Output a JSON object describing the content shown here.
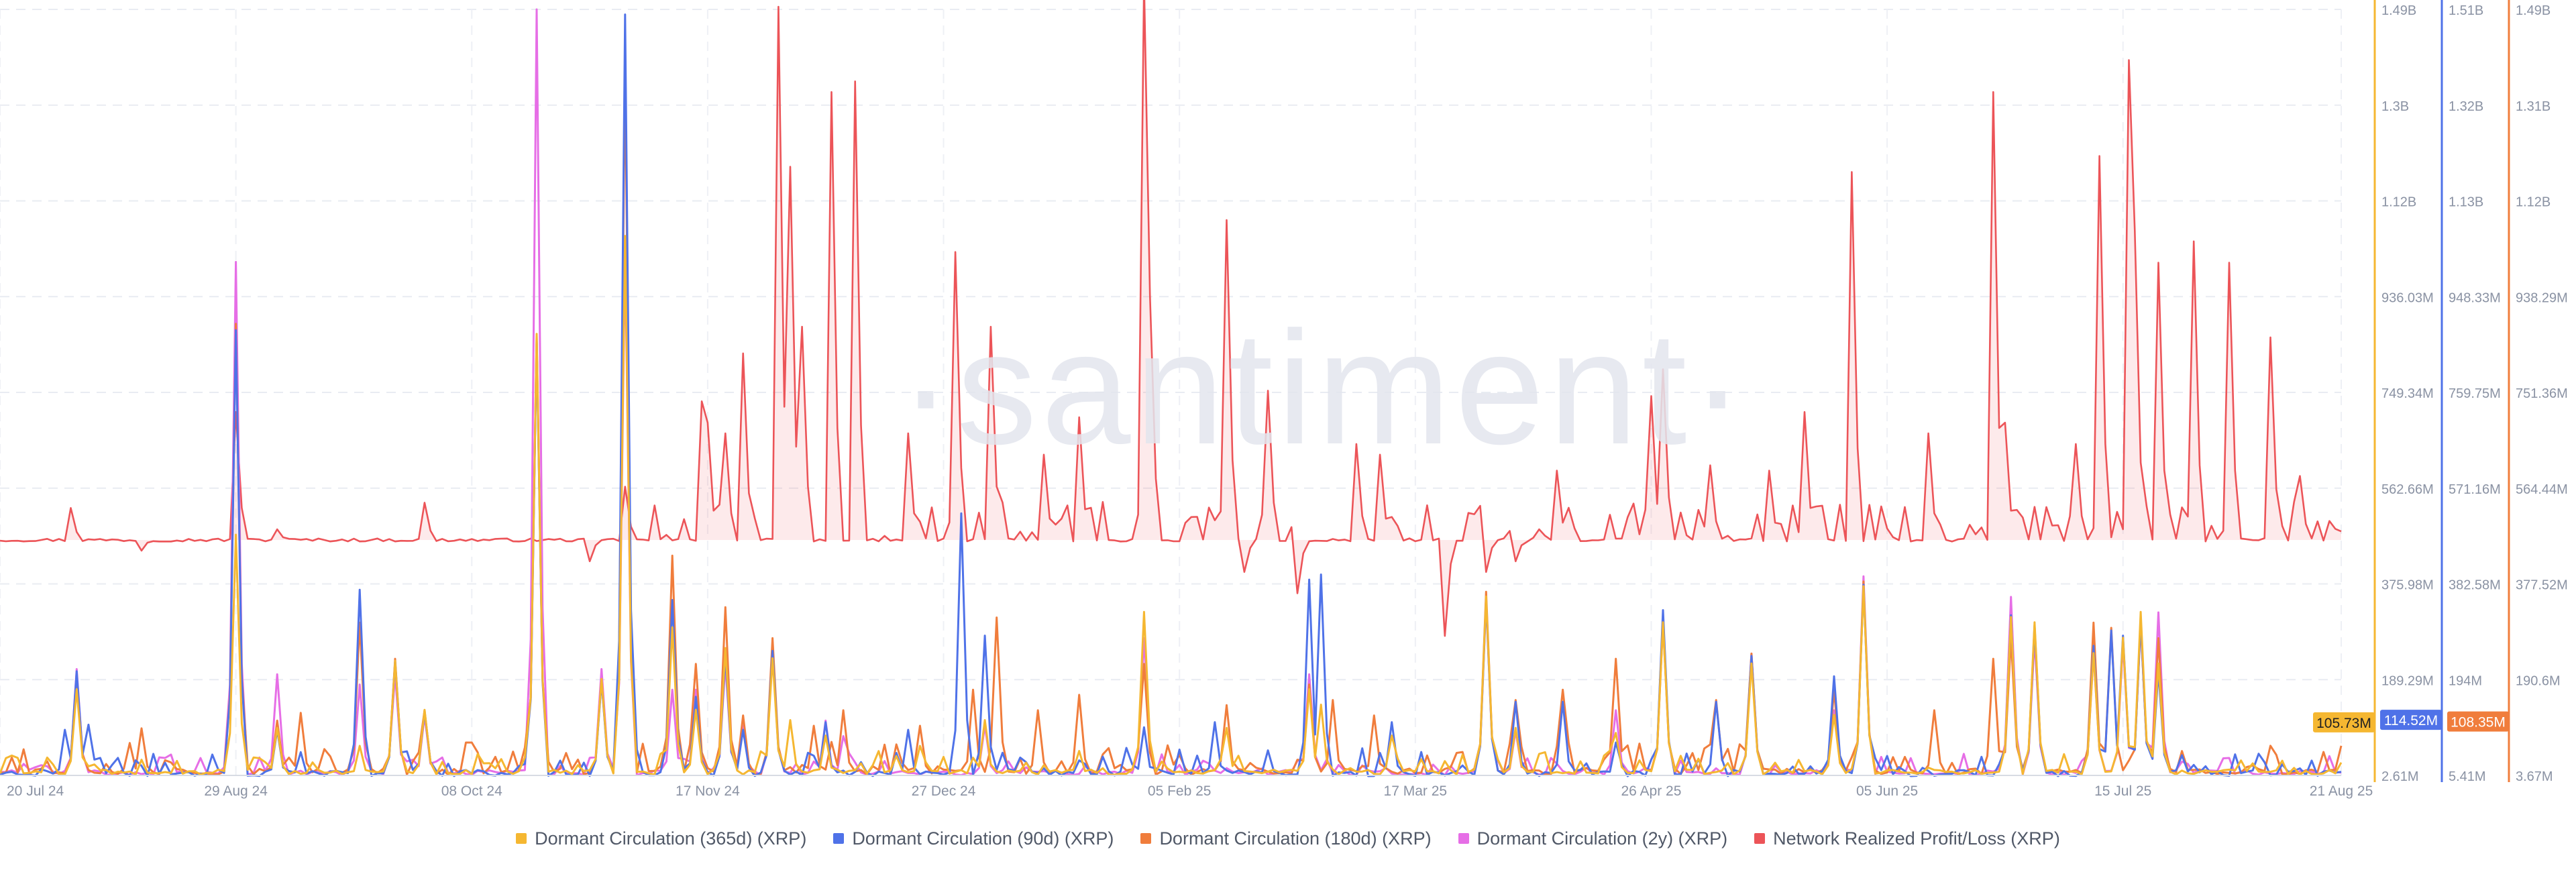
{
  "watermark": "·santiment·",
  "colors": {
    "dc365": "#f5b731",
    "dc90": "#4f72e8",
    "dc180": "#f07d3c",
    "dc2y": "#e66ee6",
    "nrpl": "#ec5458"
  },
  "chart_data": {
    "type": "line",
    "x_tick_labels": [
      "20 Jul 24",
      "29 Aug 24",
      "08 Oct 24",
      "17 Nov 24",
      "27 Dec 24",
      "05 Feb 25",
      "17 Mar 25",
      "26 Apr 25",
      "05 Jun 25",
      "15 Jul 25",
      "21 Aug 25"
    ],
    "x_tick_days": [
      0,
      40,
      80,
      120,
      160,
      200,
      240,
      280,
      320,
      360,
      397
    ],
    "grid": true,
    "y_axes": [
      {
        "series": "dc365",
        "ticks": [
          "1.49B",
          "1.3B",
          "1.12B",
          "936.03M",
          "749.34M",
          "562.66M",
          "375.98M",
          "189.29M",
          "2.61M"
        ],
        "min": 2.61,
        "max": 1490,
        "unit": "M",
        "last_value": "105.73M"
      },
      {
        "series": "dc90",
        "ticks": [
          "1.51B",
          "1.32B",
          "1.13B",
          "948.33M",
          "759.75M",
          "571.16M",
          "382.58M",
          "194M",
          "5.41M"
        ],
        "min": 5.41,
        "max": 1510,
        "unit": "M",
        "last_value": "114.52M"
      },
      {
        "series": "dc180",
        "ticks": [
          "1.49B",
          "1.31B",
          "1.12B",
          "938.29M",
          "751.36M",
          "564.44M",
          "377.52M",
          "190.6M",
          "3.67M"
        ],
        "min": 3.67,
        "max": 1490,
        "unit": "M",
        "last_value": "108.35M"
      }
    ],
    "nrpl_baseline": 0,
    "series": [
      {
        "key": "dc365",
        "name": "Dormant Circulation (365d) (XRP)",
        "spikes": [
          [
            13,
            170
          ],
          [
            40,
            470
          ],
          [
            47,
            95
          ],
          [
            61,
            60
          ],
          [
            67,
            225
          ],
          [
            72,
            130
          ],
          [
            91,
            860
          ],
          [
            102,
            190
          ],
          [
            106,
            1050
          ],
          [
            114,
            290
          ],
          [
            118,
            130
          ],
          [
            123,
            250
          ],
          [
            131,
            230
          ],
          [
            134,
            110
          ],
          [
            140,
            80
          ],
          [
            156,
            60
          ],
          [
            167,
            110
          ],
          [
            183,
            50
          ],
          [
            194,
            320
          ],
          [
            208,
            95
          ],
          [
            222,
            170
          ],
          [
            224,
            140
          ],
          [
            236,
            80
          ],
          [
            252,
            350
          ],
          [
            257,
            95
          ],
          [
            274,
            85
          ],
          [
            282,
            300
          ],
          [
            297,
            220
          ],
          [
            311,
            120
          ],
          [
            316,
            370
          ],
          [
            341,
            310
          ],
          [
            345,
            300
          ],
          [
            355,
            240
          ],
          [
            360,
            270
          ],
          [
            363,
            320
          ],
          [
            366,
            220
          ]
        ]
      },
      {
        "key": "dc90",
        "name": "Dormant Circulation (90d) (XRP)",
        "spikes": [
          [
            11,
            95
          ],
          [
            13,
            210
          ],
          [
            15,
            105
          ],
          [
            40,
            880
          ],
          [
            47,
            95
          ],
          [
            61,
            370
          ],
          [
            67,
            230
          ],
          [
            72,
            130
          ],
          [
            91,
            860
          ],
          [
            102,
            190
          ],
          [
            106,
            1500
          ],
          [
            114,
            350
          ],
          [
            118,
            160
          ],
          [
            123,
            240
          ],
          [
            126,
            95
          ],
          [
            131,
            250
          ],
          [
            140,
            110
          ],
          [
            154,
            95
          ],
          [
            163,
            520
          ],
          [
            167,
            280
          ],
          [
            194,
            100
          ],
          [
            206,
            110
          ],
          [
            222,
            390
          ],
          [
            224,
            400
          ],
          [
            236,
            110
          ],
          [
            252,
            350
          ],
          [
            257,
            150
          ],
          [
            265,
            150
          ],
          [
            274,
            70
          ],
          [
            282,
            330
          ],
          [
            291,
            150
          ],
          [
            297,
            240
          ],
          [
            311,
            200
          ],
          [
            316,
            380
          ],
          [
            341,
            320
          ],
          [
            345,
            300
          ],
          [
            355,
            260
          ],
          [
            358,
            290
          ],
          [
            360,
            280
          ],
          [
            363,
            310
          ],
          [
            366,
            210
          ]
        ]
      },
      {
        "key": "dc180",
        "name": "Dormant Circulation (180d) (XRP)",
        "spikes": [
          [
            13,
            200
          ],
          [
            24,
            95
          ],
          [
            40,
            880
          ],
          [
            47,
            110
          ],
          [
            51,
            125
          ],
          [
            61,
            300
          ],
          [
            67,
            230
          ],
          [
            72,
            130
          ],
          [
            91,
            860
          ],
          [
            102,
            190
          ],
          [
            106,
            1380
          ],
          [
            114,
            430
          ],
          [
            118,
            220
          ],
          [
            123,
            330
          ],
          [
            126,
            120
          ],
          [
            131,
            270
          ],
          [
            138,
            100
          ],
          [
            143,
            130
          ],
          [
            156,
            100
          ],
          [
            165,
            170
          ],
          [
            169,
            310
          ],
          [
            176,
            130
          ],
          [
            183,
            160
          ],
          [
            194,
            220
          ],
          [
            208,
            140
          ],
          [
            222,
            180
          ],
          [
            226,
            150
          ],
          [
            233,
            120
          ],
          [
            252,
            360
          ],
          [
            257,
            150
          ],
          [
            265,
            170
          ],
          [
            274,
            230
          ],
          [
            282,
            300
          ],
          [
            291,
            150
          ],
          [
            297,
            240
          ],
          [
            311,
            170
          ],
          [
            316,
            380
          ],
          [
            328,
            130
          ],
          [
            338,
            230
          ],
          [
            341,
            270
          ],
          [
            345,
            290
          ],
          [
            355,
            300
          ],
          [
            358,
            290
          ],
          [
            363,
            300
          ],
          [
            366,
            270
          ]
        ]
      },
      {
        "key": "dc2y",
        "name": "Dormant Circulation (2y) (XRP)",
        "spikes": [
          [
            13,
            210
          ],
          [
            40,
            1000
          ],
          [
            47,
            200
          ],
          [
            61,
            180
          ],
          [
            67,
            200
          ],
          [
            72,
            120
          ],
          [
            91,
            1490
          ],
          [
            102,
            210
          ],
          [
            106,
            1020
          ],
          [
            114,
            170
          ],
          [
            118,
            170
          ],
          [
            123,
            220
          ],
          [
            126,
            100
          ],
          [
            131,
            250
          ],
          [
            140,
            110
          ],
          [
            143,
            80
          ],
          [
            167,
            100
          ],
          [
            194,
            270
          ],
          [
            222,
            200
          ],
          [
            252,
            340
          ],
          [
            257,
            90
          ],
          [
            274,
            130
          ],
          [
            282,
            310
          ],
          [
            297,
            240
          ],
          [
            311,
            130
          ],
          [
            316,
            390
          ],
          [
            341,
            350
          ],
          [
            345,
            270
          ],
          [
            355,
            240
          ],
          [
            360,
            260
          ],
          [
            363,
            300
          ],
          [
            366,
            320
          ]
        ]
      },
      {
        "key": "nrpl",
        "name": "Network Realized Profit/Loss (XRP)",
        "spikes": [
          [
            12,
            60
          ],
          [
            40,
            240
          ],
          [
            47,
            20
          ],
          [
            72,
            70
          ],
          [
            106,
            100
          ],
          [
            119,
            260
          ],
          [
            120,
            220
          ],
          [
            123,
            200
          ],
          [
            126,
            350
          ],
          [
            132,
            1000
          ],
          [
            134,
            700
          ],
          [
            136,
            400
          ],
          [
            141,
            840
          ],
          [
            145,
            860
          ],
          [
            154,
            200
          ],
          [
            162,
            540
          ],
          [
            168,
            400
          ],
          [
            177,
            160
          ],
          [
            183,
            230
          ],
          [
            194,
            1050
          ],
          [
            195,
            460
          ],
          [
            208,
            600
          ],
          [
            215,
            280
          ],
          [
            220,
            220
          ],
          [
            230,
            180
          ],
          [
            234,
            160
          ],
          [
            252,
            360
          ],
          [
            257,
            260
          ],
          [
            264,
            130
          ],
          [
            280,
            270
          ],
          [
            282,
            320
          ],
          [
            290,
            140
          ],
          [
            300,
            130
          ],
          [
            306,
            240
          ],
          [
            314,
            690
          ],
          [
            327,
            200
          ],
          [
            338,
            840
          ],
          [
            340,
            220
          ],
          [
            352,
            180
          ],
          [
            356,
            720
          ],
          [
            361,
            900
          ],
          [
            362,
            580
          ],
          [
            366,
            520
          ],
          [
            372,
            560
          ],
          [
            378,
            520
          ],
          [
            385,
            380
          ],
          [
            390,
            120
          ],
          [
            24,
            -20
          ],
          [
            100,
            -40
          ],
          [
            211,
            -60
          ],
          [
            220,
            -100
          ],
          [
            245,
            -180
          ],
          [
            252,
            -60
          ],
          [
            257,
            -40
          ]
        ]
      }
    ]
  },
  "legend": {
    "items": [
      {
        "label": "Dormant Circulation (365d) (XRP)"
      },
      {
        "label": "Dormant Circulation (90d) (XRP)"
      },
      {
        "label": "Dormant Circulation (180d) (XRP)"
      },
      {
        "label": "Dormant Circulation (2y) (XRP)"
      },
      {
        "label": "Network Realized Profit/Loss (XRP)"
      }
    ]
  }
}
